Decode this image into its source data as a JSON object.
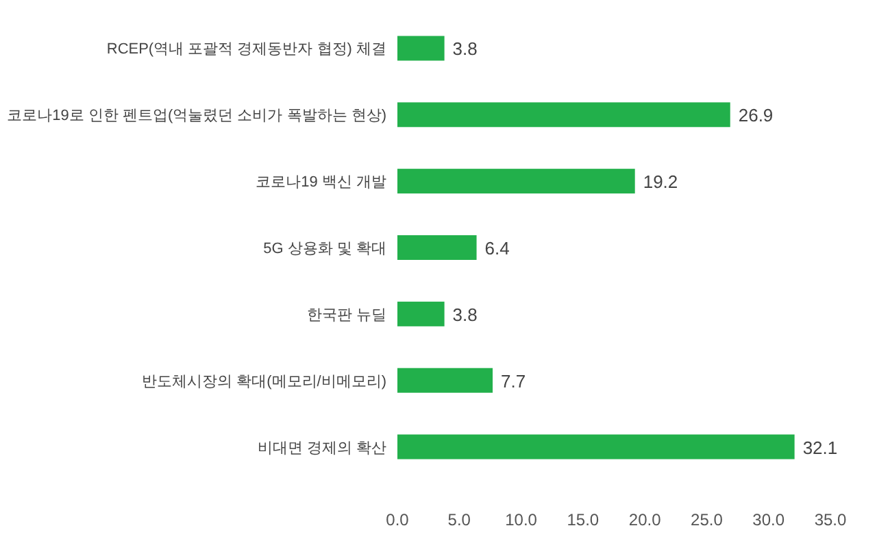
{
  "chart_data": {
    "type": "bar",
    "orientation": "horizontal",
    "categories": [
      "RCEP(역내 포괄적 경제동반자 협정) 체결",
      "코로나19로 인한 펜트업(억눌렸던 소비가 폭발하는 현상)",
      "코로나19 백신 개발",
      "5G 상용화 및 확대",
      "한국판 뉴딜",
      "반도체시장의 확대(메모리/비메모리)",
      "비대면 경제의 확산"
    ],
    "values": [
      3.8,
      26.9,
      19.2,
      6.4,
      3.8,
      7.7,
      32.1
    ],
    "color": "#22b04b",
    "xlim": [
      0,
      35
    ],
    "xticks": [
      {
        "value": 0,
        "label": "0.0"
      },
      {
        "value": 5,
        "label": "5.0"
      },
      {
        "value": 10,
        "label": "10.0"
      },
      {
        "value": 15,
        "label": "15.0"
      },
      {
        "value": 20,
        "label": "20.0"
      },
      {
        "value": 25,
        "label": "25.0"
      },
      {
        "value": 30,
        "label": "30.0"
      },
      {
        "value": 35,
        "label": "35.0"
      }
    ],
    "data_labels": true
  }
}
